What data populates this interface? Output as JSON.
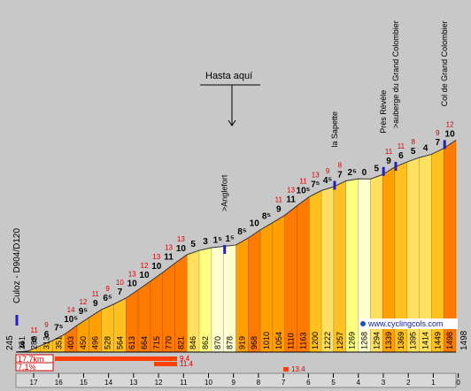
{
  "chart_data": {
    "type": "bar",
    "title_vertical_left": "Culoz - D904/D120",
    "annotation": {
      "text": "Hasta aquí"
    },
    "watermark": "www.cyclingcols.com",
    "colors": {
      "background": "#c8c8c8",
      "bar_colors": {
        "0": "#ffffd0",
        "2": "#ffff80",
        "4": "#ffe060",
        "6": "#ffc020",
        "8": "#ffa000",
        "10": "#ff7a00",
        "12": "#ff4000",
        "14": "#e00000"
      },
      "red_text": "#dd0000",
      "ruler_red": "#ff4000",
      "marker_blue": "#2020c0",
      "axis_line": "#000000"
    },
    "ylim": [
      245,
      1500
    ],
    "start_altitude": "245",
    "end_altitude": "1498",
    "x_ticks": [
      "17",
      "16",
      "15",
      "14",
      "13",
      "12",
      "11",
      "10",
      "9",
      "8",
      "7",
      "6",
      "5",
      "4",
      "3",
      "2",
      "1",
      "0"
    ],
    "distance_labels": [
      "17.7km",
      "7.1%"
    ],
    "gradient_ruler": [
      {
        "label": "9.4"
      },
      {
        "label": "11.4"
      },
      {
        "label": "13.4"
      }
    ],
    "segments": [
      {
        "alt": 251,
        "grad": "3",
        "max": ""
      },
      {
        "alt": 282,
        "grad": "6",
        "max": "11"
      },
      {
        "alt": 313,
        "grad": "6",
        "max": "9"
      },
      {
        "alt": 351,
        "grad": "7⁵",
        "max": ""
      },
      {
        "alt": 403,
        "grad": "10⁵",
        "max": "14"
      },
      {
        "alt": 450,
        "grad": "9⁵",
        "max": "12"
      },
      {
        "alt": 496,
        "grad": "9",
        "max": "11"
      },
      {
        "alt": 528,
        "grad": "6⁵",
        "max": "9"
      },
      {
        "alt": 564,
        "grad": "7",
        "max": "10"
      },
      {
        "alt": 613,
        "grad": "10",
        "max": "13"
      },
      {
        "alt": 664,
        "grad": "10",
        "max": "12"
      },
      {
        "alt": 715,
        "grad": "10",
        "max": "13"
      },
      {
        "alt": 770,
        "grad": "11",
        "max": "13"
      },
      {
        "alt": 821,
        "grad": "10",
        "max": "13"
      },
      {
        "alt": 846,
        "grad": "5",
        "max": ""
      },
      {
        "alt": 862,
        "grad": "3",
        "max": ""
      },
      {
        "alt": 870,
        "grad": "1⁵",
        "max": ""
      },
      {
        "alt": 878,
        "grad": "1⁵",
        "max": ""
      },
      {
        "alt": 919,
        "grad": "8⁵",
        "max": ""
      },
      {
        "alt": 968,
        "grad": "10",
        "max": ""
      },
      {
        "alt": 1010,
        "grad": "8⁵",
        "max": ""
      },
      {
        "alt": 1054,
        "grad": "9",
        "max": "11"
      },
      {
        "alt": 1110,
        "grad": "11",
        "max": "13"
      },
      {
        "alt": 1163,
        "grad": "10⁵",
        "max": "11"
      },
      {
        "alt": 1200,
        "grad": "7⁵",
        "max": "13"
      },
      {
        "alt": 1222,
        "grad": "4⁵",
        "max": "9"
      },
      {
        "alt": 1257,
        "grad": "7",
        "max": "8"
      },
      {
        "alt": 1269,
        "grad": "2⁵",
        "max": ""
      },
      {
        "alt": 1268,
        "grad": "0",
        "max": ""
      },
      {
        "alt": 1294,
        "grad": "5",
        "max": ""
      },
      {
        "alt": 1339,
        "grad": "9",
        "max": "11"
      },
      {
        "alt": 1369,
        "grad": "6",
        "max": "11"
      },
      {
        "alt": 1395,
        "grad": "5",
        "max": "8"
      },
      {
        "alt": 1414,
        "grad": "4",
        "max": ""
      },
      {
        "alt": 1449,
        "grad": "7",
        "max": "9"
      },
      {
        "alt": 1498,
        "grad": "10",
        "max": "12"
      }
    ],
    "place_labels": [
      {
        "text": ">Anglefort"
      },
      {
        "text": "la Sapette"
      },
      {
        "text": "Près Révèle"
      },
      {
        "text": ">auberge du Grand Colombier"
      },
      {
        "text": "Col de Grand Colombier"
      }
    ]
  }
}
